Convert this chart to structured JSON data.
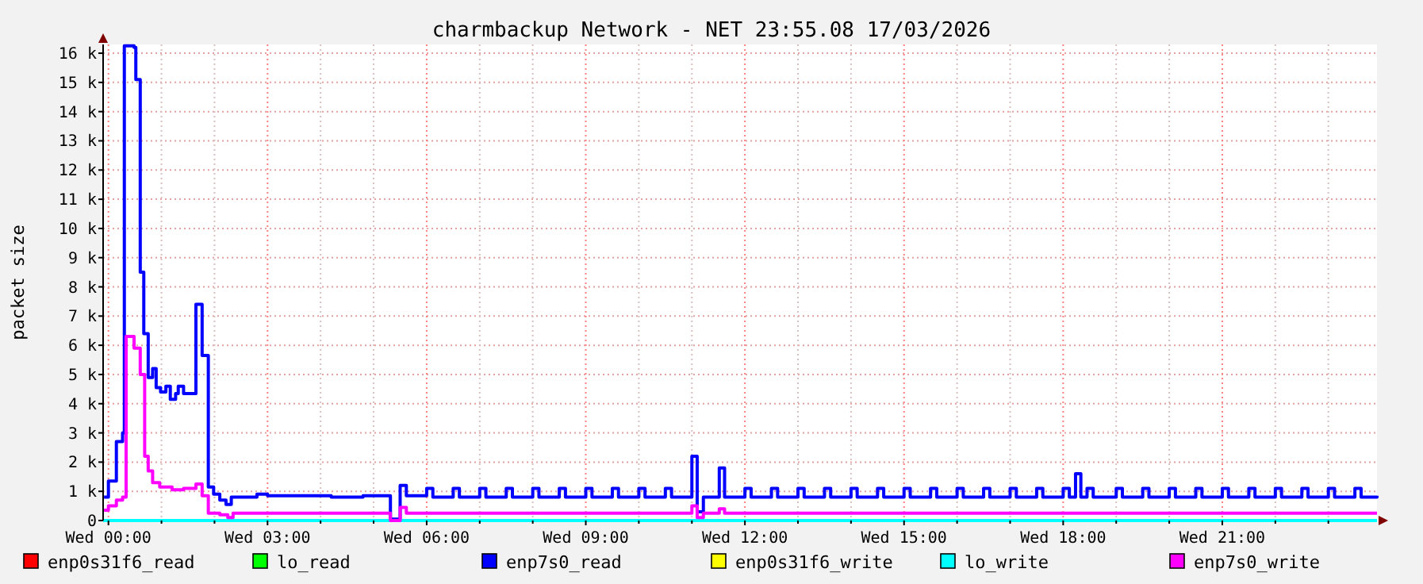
{
  "chart_data": {
    "type": "step",
    "title": "charmbackup Network - NET 23:55.08 17/03/2026",
    "ylabel": "packet size",
    "xlim": [
      "2026-03-17T23:54",
      "2026-03-18T23:55"
    ],
    "xticks": [
      {
        "value": "2026-03-18T00:00",
        "label": "Wed 00:00"
      },
      {
        "value": "2026-03-18T01:00",
        "label": null
      },
      {
        "value": "2026-03-18T02:00",
        "label": null
      },
      {
        "value": "2026-03-18T03:00",
        "label": "Wed 03:00"
      },
      {
        "value": "2026-03-18T04:00",
        "label": null
      },
      {
        "value": "2026-03-18T05:00",
        "label": null
      },
      {
        "value": "2026-03-18T06:00",
        "label": "Wed 06:00"
      },
      {
        "value": "2026-03-18T07:00",
        "label": null
      },
      {
        "value": "2026-03-18T08:00",
        "label": null
      },
      {
        "value": "2026-03-18T09:00",
        "label": "Wed 09:00"
      },
      {
        "value": "2026-03-18T10:00",
        "label": null
      },
      {
        "value": "2026-03-18T11:00",
        "label": null
      },
      {
        "value": "2026-03-18T12:00",
        "label": "Wed 12:00"
      },
      {
        "value": "2026-03-18T13:00",
        "label": null
      },
      {
        "value": "2026-03-18T14:00",
        "label": null
      },
      {
        "value": "2026-03-18T15:00",
        "label": "Wed 15:00"
      },
      {
        "value": "2026-03-18T16:00",
        "label": null
      },
      {
        "value": "2026-03-18T17:00",
        "label": null
      },
      {
        "value": "2026-03-18T18:00",
        "label": "Wed 18:00"
      },
      {
        "value": "2026-03-18T19:00",
        "label": null
      },
      {
        "value": "2026-03-18T20:00",
        "label": null
      },
      {
        "value": "2026-03-18T21:00",
        "label": "Wed 21:00"
      },
      {
        "value": "2026-03-18T22:00",
        "label": null
      },
      {
        "value": "2026-03-18T23:00",
        "label": null
      }
    ],
    "ylim": [
      0,
      16.3
    ],
    "yticks": [
      0,
      {
        "value": 1,
        "label": "1 k"
      },
      {
        "value": 2,
        "label": "2 k"
      },
      {
        "value": 3,
        "label": "3 k"
      },
      {
        "value": 4,
        "label": "4 k"
      },
      {
        "value": 5,
        "label": "5 k"
      },
      {
        "value": 6,
        "label": "6 k"
      },
      {
        "value": 7,
        "label": "7 k"
      },
      {
        "value": 8,
        "label": "8 k"
      },
      {
        "value": 9,
        "label": "9 k"
      },
      {
        "value": 10,
        "label": "10 k"
      },
      {
        "value": 11,
        "label": "11 k"
      },
      {
        "value": 12,
        "label": "12 k"
      },
      {
        "value": 13,
        "label": "13 k"
      },
      {
        "value": 14,
        "label": "14 k"
      },
      {
        "value": 15,
        "label": "15 k"
      },
      {
        "value": 16,
        "label": "16 k"
      }
    ],
    "grid": true,
    "legend": "bottom",
    "series": [
      {
        "name": "enp0s31f6_read",
        "color": "#ff0000"
      },
      {
        "name": "lo_read",
        "color": "#00ff00"
      },
      {
        "name": "enp7s0_read",
        "color": "#0000ff",
        "x": [
          "2026-03-17T23:55",
          "2026-03-18T00:00",
          "2026-03-18T00:09",
          "2026-03-18T00:16",
          "2026-03-18T00:18",
          "2026-03-18T00:29",
          "2026-03-18T00:31",
          "2026-03-18T00:36",
          "2026-03-18T00:40",
          "2026-03-18T00:45",
          "2026-03-18T00:50",
          "2026-03-18T00:54",
          "2026-03-18T00:59",
          "2026-03-18T01:05",
          "2026-03-18T01:10",
          "2026-03-18T01:16",
          "2026-03-18T01:19",
          "2026-03-18T01:25",
          "2026-03-18T01:39",
          "2026-03-18T01:46",
          "2026-03-18T01:53",
          "2026-03-18T01:59",
          "2026-03-18T02:06",
          "2026-03-18T02:13",
          "2026-03-18T02:19",
          "2026-03-18T02:48",
          "2026-03-18T03:00",
          "2026-03-18T03:36",
          "2026-03-18T04:12",
          "2026-03-18T04:48",
          "2026-03-18T05:19",
          "2026-03-18T05:30",
          "2026-03-18T05:37",
          "2026-03-18T06:00",
          "2026-03-18T06:07",
          "2026-03-18T06:30",
          "2026-03-18T06:37",
          "2026-03-18T07:00",
          "2026-03-18T07:07",
          "2026-03-18T07:30",
          "2026-03-18T07:37",
          "2026-03-18T08:00",
          "2026-03-18T08:07",
          "2026-03-18T08:30",
          "2026-03-18T08:37",
          "2026-03-18T09:00",
          "2026-03-18T09:07",
          "2026-03-18T09:30",
          "2026-03-18T09:37",
          "2026-03-18T10:00",
          "2026-03-18T10:07",
          "2026-03-18T10:30",
          "2026-03-18T10:37",
          "2026-03-18T11:00",
          "2026-03-18T11:06",
          "2026-03-18T11:13",
          "2026-03-18T11:31",
          "2026-03-18T11:37",
          "2026-03-18T12:00",
          "2026-03-18T12:07",
          "2026-03-18T12:30",
          "2026-03-18T12:37",
          "2026-03-18T13:00",
          "2026-03-18T13:07",
          "2026-03-18T13:30",
          "2026-03-18T13:37",
          "2026-03-18T14:00",
          "2026-03-18T14:07",
          "2026-03-18T14:30",
          "2026-03-18T14:37",
          "2026-03-18T15:00",
          "2026-03-18T15:07",
          "2026-03-18T15:30",
          "2026-03-18T15:37",
          "2026-03-18T16:00",
          "2026-03-18T16:07",
          "2026-03-18T16:30",
          "2026-03-18T16:37",
          "2026-03-18T17:00",
          "2026-03-18T17:07",
          "2026-03-18T17:30",
          "2026-03-18T17:37",
          "2026-03-18T18:00",
          "2026-03-18T18:07",
          "2026-03-18T18:14",
          "2026-03-18T18:20",
          "2026-03-18T18:27",
          "2026-03-18T18:34",
          "2026-03-18T19:00",
          "2026-03-18T19:07",
          "2026-03-18T19:30",
          "2026-03-18T19:37",
          "2026-03-18T20:00",
          "2026-03-18T20:07",
          "2026-03-18T20:30",
          "2026-03-18T20:37",
          "2026-03-18T21:00",
          "2026-03-18T21:07",
          "2026-03-18T21:30",
          "2026-03-18T21:37",
          "2026-03-18T22:00",
          "2026-03-18T22:07",
          "2026-03-18T22:30",
          "2026-03-18T22:37",
          "2026-03-18T23:00",
          "2026-03-18T23:07",
          "2026-03-18T23:30",
          "2026-03-18T23:37",
          "2026-03-18T23:55"
        ],
        "values": [
          0.8,
          1.35,
          2.7,
          3.0,
          16.25,
          16.2,
          15.1,
          8.5,
          6.4,
          4.9,
          5.2,
          4.55,
          4.4,
          4.6,
          4.15,
          4.35,
          4.6,
          4.35,
          7.4,
          5.65,
          1.15,
          0.9,
          0.7,
          0.55,
          0.8,
          0.9,
          0.85,
          0.85,
          0.8,
          0.85,
          0.05,
          1.2,
          0.85,
          1.1,
          0.8,
          1.1,
          0.8,
          1.1,
          0.8,
          1.1,
          0.8,
          1.1,
          0.8,
          1.1,
          0.8,
          1.1,
          0.8,
          1.1,
          0.8,
          1.1,
          0.8,
          1.1,
          0.8,
          2.2,
          0.3,
          0.8,
          1.8,
          0.8,
          1.1,
          0.8,
          1.1,
          0.8,
          1.1,
          0.8,
          1.1,
          0.8,
          1.1,
          0.8,
          1.1,
          0.8,
          1.1,
          0.8,
          1.1,
          0.8,
          1.1,
          0.8,
          1.1,
          0.8,
          1.1,
          0.8,
          1.1,
          0.8,
          1.1,
          0.8,
          1.6,
          0.8,
          1.1,
          0.8,
          1.1,
          0.8,
          1.1,
          0.8,
          1.1,
          0.8,
          1.1,
          0.8,
          1.1,
          0.8,
          1.1,
          0.8,
          1.1,
          0.8,
          1.1,
          0.8,
          1.1,
          0.8,
          1.1,
          0.8,
          0.85
        ]
      },
      {
        "name": "enp0s31f6_write",
        "color": "#ffff00"
      },
      {
        "name": "lo_write",
        "color": "#00ffff",
        "x": [
          "2026-03-17T23:54",
          "2026-03-18T23:55"
        ],
        "values": [
          0,
          0
        ]
      },
      {
        "name": "enp7s0_write",
        "color": "#ff00ff",
        "x": [
          "2026-03-17T23:55",
          "2026-03-18T00:00",
          "2026-03-18T00:09",
          "2026-03-18T00:16",
          "2026-03-18T00:20",
          "2026-03-18T00:29",
          "2026-03-18T00:36",
          "2026-03-18T00:41",
          "2026-03-18T00:45",
          "2026-03-18T00:50",
          "2026-03-18T00:58",
          "2026-03-18T01:12",
          "2026-03-18T01:25",
          "2026-03-18T01:39",
          "2026-03-18T01:46",
          "2026-03-18T01:53",
          "2026-03-18T02:06",
          "2026-03-18T02:15",
          "2026-03-18T02:21",
          "2026-03-18T05:19",
          "2026-03-18T05:30",
          "2026-03-18T05:37",
          "2026-03-18T11:00",
          "2026-03-18T11:06",
          "2026-03-18T11:13",
          "2026-03-18T11:31",
          "2026-03-18T11:37",
          "2026-03-18T23:55"
        ],
        "values": [
          0.35,
          0.5,
          0.7,
          0.8,
          6.3,
          5.9,
          5.0,
          2.2,
          1.7,
          1.3,
          1.15,
          1.05,
          1.1,
          1.25,
          0.85,
          0.25,
          0.2,
          0.1,
          0.25,
          0.0,
          0.45,
          0.25,
          0.5,
          0.1,
          0.25,
          0.4,
          0.25,
          0.25
        ]
      }
    ]
  }
}
